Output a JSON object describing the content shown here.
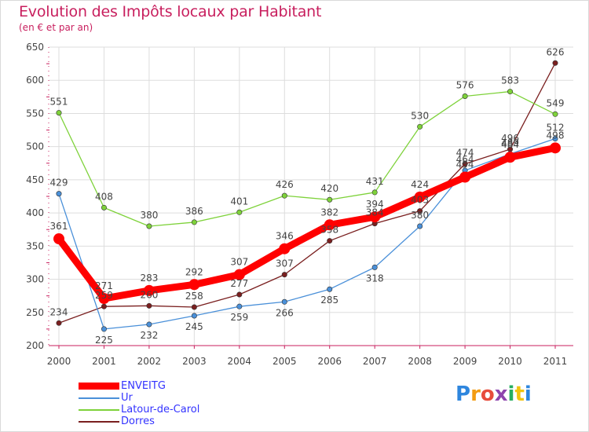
{
  "chart_data": {
    "type": "line",
    "title": "Evolution des Impôts locaux par Habitant",
    "subtitle": "(en € et par an)",
    "xlabel": "",
    "ylabel": "",
    "categories": [
      "2000",
      "2001",
      "2002",
      "2003",
      "2004",
      "2005",
      "2006",
      "2007",
      "2008",
      "2009",
      "2010",
      "2011"
    ],
    "ylim": [
      200,
      650
    ],
    "yticks": [
      "200",
      "250",
      "300",
      "350",
      "400",
      "450",
      "500",
      "550",
      "600",
      "650"
    ],
    "grid": true,
    "legend_position": "bottom-left",
    "series": [
      {
        "name": "ENVEITG",
        "color": "#ff0000",
        "values": [
          361,
          271,
          283,
          292,
          307,
          346,
          382,
          394,
          424,
          454,
          484,
          498
        ],
        "labels": [
          "361",
          "271",
          "283",
          "292",
          "307",
          "346",
          "382",
          "394",
          "424",
          "454",
          "484",
          "498"
        ]
      },
      {
        "name": "Ur",
        "color": "#4a90d9",
        "values": [
          429,
          225,
          232,
          245,
          259,
          266,
          285,
          318,
          380,
          464,
          489,
          512
        ],
        "labels": [
          "429",
          "225",
          "232",
          "245",
          "259",
          "266",
          "285",
          "318",
          "380",
          "464",
          "489",
          "512"
        ]
      },
      {
        "name": "Latour-de-Carol",
        "color": "#7ed23a",
        "values": [
          551,
          408,
          380,
          386,
          401,
          426,
          420,
          431,
          530,
          576,
          583,
          549
        ],
        "labels": [
          "551",
          "408",
          "380",
          "386",
          "401",
          "426",
          "420",
          "431",
          "530",
          "576",
          "583",
          "549"
        ]
      },
      {
        "name": "Dorres",
        "color": "#7a1f1f",
        "values": [
          234,
          259,
          260,
          258,
          277,
          307,
          358,
          384,
          403,
          474,
          496,
          626
        ],
        "labels": [
          "234",
          "259",
          "260",
          "258",
          "277",
          "307",
          "358",
          "384",
          "403",
          "474",
          "496",
          "626"
        ]
      }
    ]
  },
  "legend": {
    "items": [
      "ENVEITG",
      "Ur",
      "Latour-de-Carol",
      "Dorres"
    ]
  },
  "logo": {
    "text": "Proxiti",
    "letters": [
      {
        "ch": "P",
        "color": "#2e86de"
      },
      {
        "ch": "r",
        "color": "#f39c12"
      },
      {
        "ch": "o",
        "color": "#e74c3c"
      },
      {
        "ch": "x",
        "color": "#8e44ad"
      },
      {
        "ch": "i",
        "color": "#27ae60"
      },
      {
        "ch": "t",
        "color": "#f1c40f"
      },
      {
        "ch": "i",
        "color": "#2e86de"
      }
    ]
  }
}
